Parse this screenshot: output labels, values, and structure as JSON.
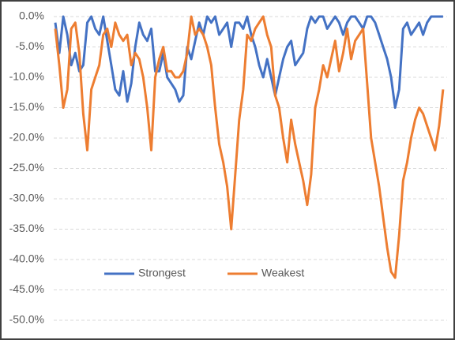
{
  "chart_data": {
    "type": "line",
    "categories": [
      null,
      null,
      null,
      null,
      null,
      null,
      null,
      null,
      null,
      null,
      null,
      null,
      null,
      null,
      null,
      null,
      null,
      null,
      null,
      null,
      null,
      null,
      null,
      null,
      null,
      null,
      null,
      null,
      null,
      null,
      null,
      null,
      null,
      null,
      null,
      null,
      null,
      null,
      null,
      null,
      null,
      null,
      null,
      null,
      null,
      null,
      null,
      null,
      null,
      null,
      null,
      null,
      null,
      null,
      null,
      null,
      null,
      null,
      null,
      null,
      null,
      null,
      null,
      null,
      null,
      null,
      null,
      null,
      null,
      null,
      null,
      null,
      null,
      null,
      null,
      null,
      null,
      null,
      null,
      null,
      null,
      null,
      null,
      null,
      null,
      null,
      null,
      null,
      null,
      null,
      null,
      null,
      null,
      null,
      null,
      null,
      null,
      null
    ],
    "series": [
      {
        "name": "Strongest",
        "color": "#4472c4",
        "values": [
          -1,
          -6,
          0,
          -3,
          -8,
          -6,
          -9,
          -8,
          -1,
          0,
          -2,
          -3,
          0,
          -4,
          -8,
          -12,
          -13,
          -9,
          -14,
          -11,
          -5,
          -1,
          -3,
          -4,
          -2,
          -9,
          -9,
          -6,
          -10,
          -11,
          -12,
          -14,
          -13,
          -5,
          -7,
          -4,
          -1,
          -3,
          0,
          -1,
          0,
          -3,
          -2,
          -1,
          -5,
          -1,
          -1,
          -2,
          0,
          -3,
          -5,
          -8,
          -10,
          -7,
          -10,
          -13,
          -10,
          -7,
          -5,
          -4,
          -8,
          -7,
          -6,
          -2,
          0,
          -1,
          0,
          0,
          -2,
          -1,
          0,
          -1,
          -3,
          -1,
          0,
          0,
          -1,
          -2,
          0,
          0,
          -1,
          -3,
          -5,
          -7,
          -10,
          -15,
          -12,
          -2,
          -1,
          -3,
          -2,
          -1,
          -3,
          -1,
          0,
          0,
          0,
          0
        ]
      },
      {
        "name": "Weakest",
        "color": "#ed7d31",
        "values": [
          -2,
          -8,
          -15,
          -12,
          -2,
          -1,
          -6,
          -16,
          -22,
          -12,
          -10,
          -8,
          -3,
          -2,
          -5,
          -1,
          -3,
          -4,
          -3,
          -8,
          -6,
          -7,
          -10,
          -15,
          -22,
          -10,
          -7,
          -5,
          -9,
          -9,
          -10,
          -10,
          -9,
          -6,
          0,
          -3,
          -2,
          -3,
          -5,
          -8,
          -15,
          -21,
          -24,
          -28,
          -35,
          -26,
          -17,
          -12,
          -3,
          -4,
          -2,
          -1,
          0,
          -3,
          -5,
          -13,
          -15,
          -20,
          -24,
          -17,
          -21,
          -24,
          -27,
          -31,
          -26,
          -15,
          -12,
          -8,
          -10,
          -7,
          -4,
          -9,
          -6,
          -2,
          -7,
          -4,
          -3,
          -2,
          -11,
          -20,
          -24,
          -28,
          -33,
          -38,
          -42,
          -43,
          -36,
          -27,
          -24,
          -20,
          -17,
          -15,
          -16,
          -18,
          -20,
          -22,
          -18,
          -12
        ]
      }
    ],
    "ylim": [
      -50,
      0
    ],
    "yticks": [
      {
        "value": -50,
        "label": "-50.0%"
      },
      {
        "value": -45,
        "label": "-45.0%"
      },
      {
        "value": -40,
        "label": "-40.0%"
      },
      {
        "value": -35,
        "label": "-35.0%"
      },
      {
        "value": -30,
        "label": "-30.0%"
      },
      {
        "value": -25,
        "label": "-25.0%"
      },
      {
        "value": -20,
        "label": "-20.0%"
      },
      {
        "value": -15,
        "label": "-15.0%"
      },
      {
        "value": -10,
        "label": "-10.0%"
      },
      {
        "value": -5,
        "label": "-5.0%"
      },
      {
        "value": 0,
        "label": "0.0%"
      }
    ],
    "grid": true,
    "legend": "bottom-inside"
  }
}
